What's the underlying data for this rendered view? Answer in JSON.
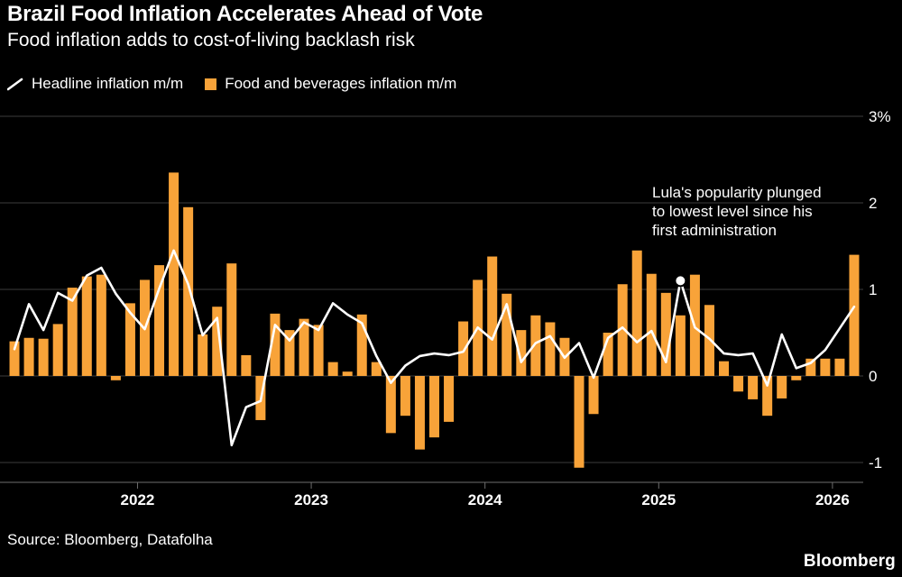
{
  "header": {
    "title": "Brazil Food Inflation Accelerates Ahead of Vote",
    "subtitle": "Food inflation adds to cost-of-living backlash risk"
  },
  "legend": [
    {
      "label": "Headline inflation m/m",
      "type": "line",
      "color": "#FFFFFF"
    },
    {
      "label": "Food and beverages inflation m/m",
      "type": "bar",
      "color": "#F8A339"
    }
  ],
  "annotation": {
    "text": "Lula's popularity plunged to lowest level since his first administration",
    "point_month": "2025-02",
    "point_value": 1.1
  },
  "source": "Source: Bloomberg, Datafolha",
  "brand": "Bloomberg",
  "chart_data": {
    "type": "bar",
    "title": "Brazil Food Inflation Accelerates Ahead of Vote",
    "xlabel": "",
    "ylabel": "%",
    "ylim": [
      -1.25,
      3.1
    ],
    "grid": true,
    "legend_position": "top-left",
    "x": [
      "2021-04",
      "2021-05",
      "2021-06",
      "2021-07",
      "2021-08",
      "2021-09",
      "2021-10",
      "2021-11",
      "2021-12",
      "2022-01",
      "2022-02",
      "2022-03",
      "2022-04",
      "2022-05",
      "2022-06",
      "2022-07",
      "2022-08",
      "2022-09",
      "2022-10",
      "2022-11",
      "2022-12",
      "2023-01",
      "2023-02",
      "2023-03",
      "2023-04",
      "2023-05",
      "2023-06",
      "2023-07",
      "2023-08",
      "2023-09",
      "2023-10",
      "2023-11",
      "2023-12",
      "2024-01",
      "2024-02",
      "2024-03",
      "2024-04",
      "2024-05",
      "2024-06",
      "2024-07",
      "2024-08",
      "2024-09",
      "2024-10",
      "2024-11",
      "2024-12",
      "2025-01",
      "2025-02",
      "2025-03",
      "2025-04",
      "2025-05",
      "2025-06",
      "2025-07",
      "2025-08",
      "2025-09",
      "2025-10",
      "2025-11",
      "2025-12",
      "2026-01",
      "2026-02"
    ],
    "series": [
      {
        "name": "Headline inflation m/m",
        "type": "line",
        "color": "#FFFFFF",
        "values": [
          0.31,
          0.83,
          0.53,
          0.96,
          0.87,
          1.16,
          1.25,
          0.95,
          0.73,
          0.54,
          1.01,
          1.45,
          1.06,
          0.47,
          0.67,
          -0.8,
          -0.36,
          -0.29,
          0.59,
          0.41,
          0.62,
          0.53,
          0.84,
          0.71,
          0.61,
          0.23,
          -0.08,
          0.12,
          0.23,
          0.26,
          0.24,
          0.28,
          0.56,
          0.42,
          0.83,
          0.16,
          0.38,
          0.46,
          0.21,
          0.38,
          -0.02,
          0.44,
          0.56,
          0.39,
          0.52,
          0.16,
          1.1,
          0.56,
          0.43,
          0.26,
          0.24,
          0.26,
          -0.11,
          0.48,
          0.09,
          0.15,
          0.3,
          0.55,
          0.8
        ]
      },
      {
        "name": "Food and beverages inflation m/m",
        "type": "bar",
        "color": "#F8A339",
        "values": [
          0.4,
          0.44,
          0.43,
          0.6,
          1.02,
          1.15,
          1.17,
          -0.05,
          0.84,
          1.11,
          1.28,
          2.35,
          1.95,
          0.48,
          0.8,
          1.3,
          0.24,
          -0.51,
          0.72,
          0.53,
          0.66,
          0.59,
          0.16,
          0.05,
          0.71,
          0.16,
          -0.66,
          -0.46,
          -0.85,
          -0.71,
          -0.53,
          0.63,
          1.11,
          1.38,
          0.95,
          0.53,
          0.7,
          0.62,
          0.44,
          -1.06,
          -0.44,
          0.5,
          1.06,
          1.45,
          1.18,
          0.96,
          0.7,
          1.17,
          0.82,
          0.17,
          -0.18,
          -0.27,
          -0.46,
          -0.26,
          -0.05,
          0.2,
          0.2,
          0.2,
          1.4
        ]
      }
    ],
    "yticks": [
      {
        "value": 3,
        "label": "3%"
      },
      {
        "value": 2,
        "label": "2"
      },
      {
        "value": 1,
        "label": "1"
      },
      {
        "value": 0,
        "label": "0"
      },
      {
        "value": -1,
        "label": "-1"
      }
    ],
    "xticks": [
      {
        "index": 9,
        "label": "2022"
      },
      {
        "index": 21,
        "label": "2023"
      },
      {
        "index": 33,
        "label": "2024"
      },
      {
        "index": 45,
        "label": "2025"
      },
      {
        "index": 57,
        "label": "2026"
      }
    ]
  }
}
